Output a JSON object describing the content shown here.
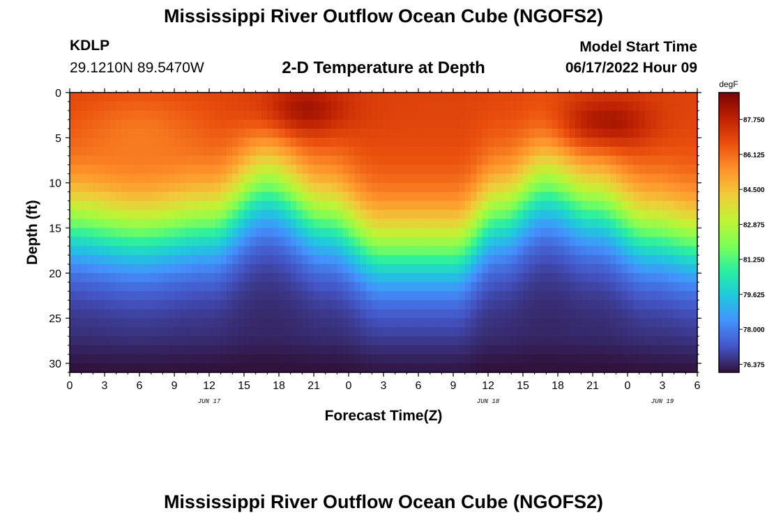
{
  "header": {
    "title": "Mississippi River Outflow Ocean Cube (NGOFS2)",
    "station_id": "KDLP",
    "station_coords": "29.1210N  89.5470W",
    "plot_title": "2-D Temperature at Depth",
    "model_start_label": "Model Start Time",
    "model_start_value": "06/17/2022 Hour 09"
  },
  "footer": {
    "title": "Mississippi River Outflow Ocean Cube (NGOFS2)"
  },
  "chart_data": {
    "type": "heatmap",
    "title": "2-D Temperature at Depth",
    "xlabel": "Forecast Time(Z)",
    "ylabel": "Depth (ft)",
    "x_tick_labels": [
      "0",
      "3",
      "6",
      "9",
      "12",
      "15",
      "18",
      "21",
      "0",
      "3",
      "6",
      "9",
      "12",
      "15",
      "18",
      "21",
      "0",
      "3",
      "6"
    ],
    "x_range_hours": [
      0,
      54
    ],
    "date_labels": [
      {
        "label": "JUN 17",
        "hour": 12
      },
      {
        "label": "JUN 18",
        "hour": 36
      },
      {
        "label": "JUN 19",
        "hour": 51
      }
    ],
    "y_ticks": [
      0,
      5,
      10,
      15,
      20,
      25,
      30
    ],
    "ylim": [
      31,
      0
    ],
    "colorbar": {
      "unit": "degF",
      "range": [
        76.0,
        89.0
      ],
      "tick_labels": [
        "87.750",
        "86.125",
        "84.500",
        "82.875",
        "81.250",
        "79.625",
        "78.000",
        "76.375"
      ],
      "tick_values": [
        87.75,
        86.125,
        84.5,
        82.875,
        81.25,
        79.625,
        78.0,
        76.375
      ],
      "colors": [
        "#30123b",
        "#4454c4",
        "#4490fe",
        "#1fc8de",
        "#29efa2",
        "#7dff56",
        "#c1f334",
        "#f1ca3a",
        "#fe922a",
        "#ea4f0d",
        "#be2102",
        "#7a0403"
      ]
    },
    "field": {
      "description": "temperature at depth vs forecast time",
      "surface_temp_degF": 87.0,
      "bottom_temp_degF": 76.3,
      "thermocline_depth_ft": [
        {
          "hour": 0,
          "depth": 14.5
        },
        {
          "hour": 6,
          "depth": 15.5
        },
        {
          "hour": 12,
          "depth": 14.5
        },
        {
          "hour": 17,
          "depth": 10.5
        },
        {
          "hour": 22,
          "depth": 14.0
        },
        {
          "hour": 27,
          "depth": 17.5
        },
        {
          "hour": 33,
          "depth": 17.5
        },
        {
          "hour": 37,
          "depth": 13.5
        },
        {
          "hour": 41,
          "depth": 10.5
        },
        {
          "hour": 45,
          "depth": 12.5
        },
        {
          "hour": 50,
          "depth": 15.5
        },
        {
          "hour": 54,
          "depth": 16.5
        }
      ],
      "warm_cores": [
        {
          "hour": 20,
          "depth": 2.0,
          "temp_degF": 88.6
        },
        {
          "hour": 46,
          "depth": 3.5,
          "temp_degF": 88.7
        }
      ]
    }
  }
}
